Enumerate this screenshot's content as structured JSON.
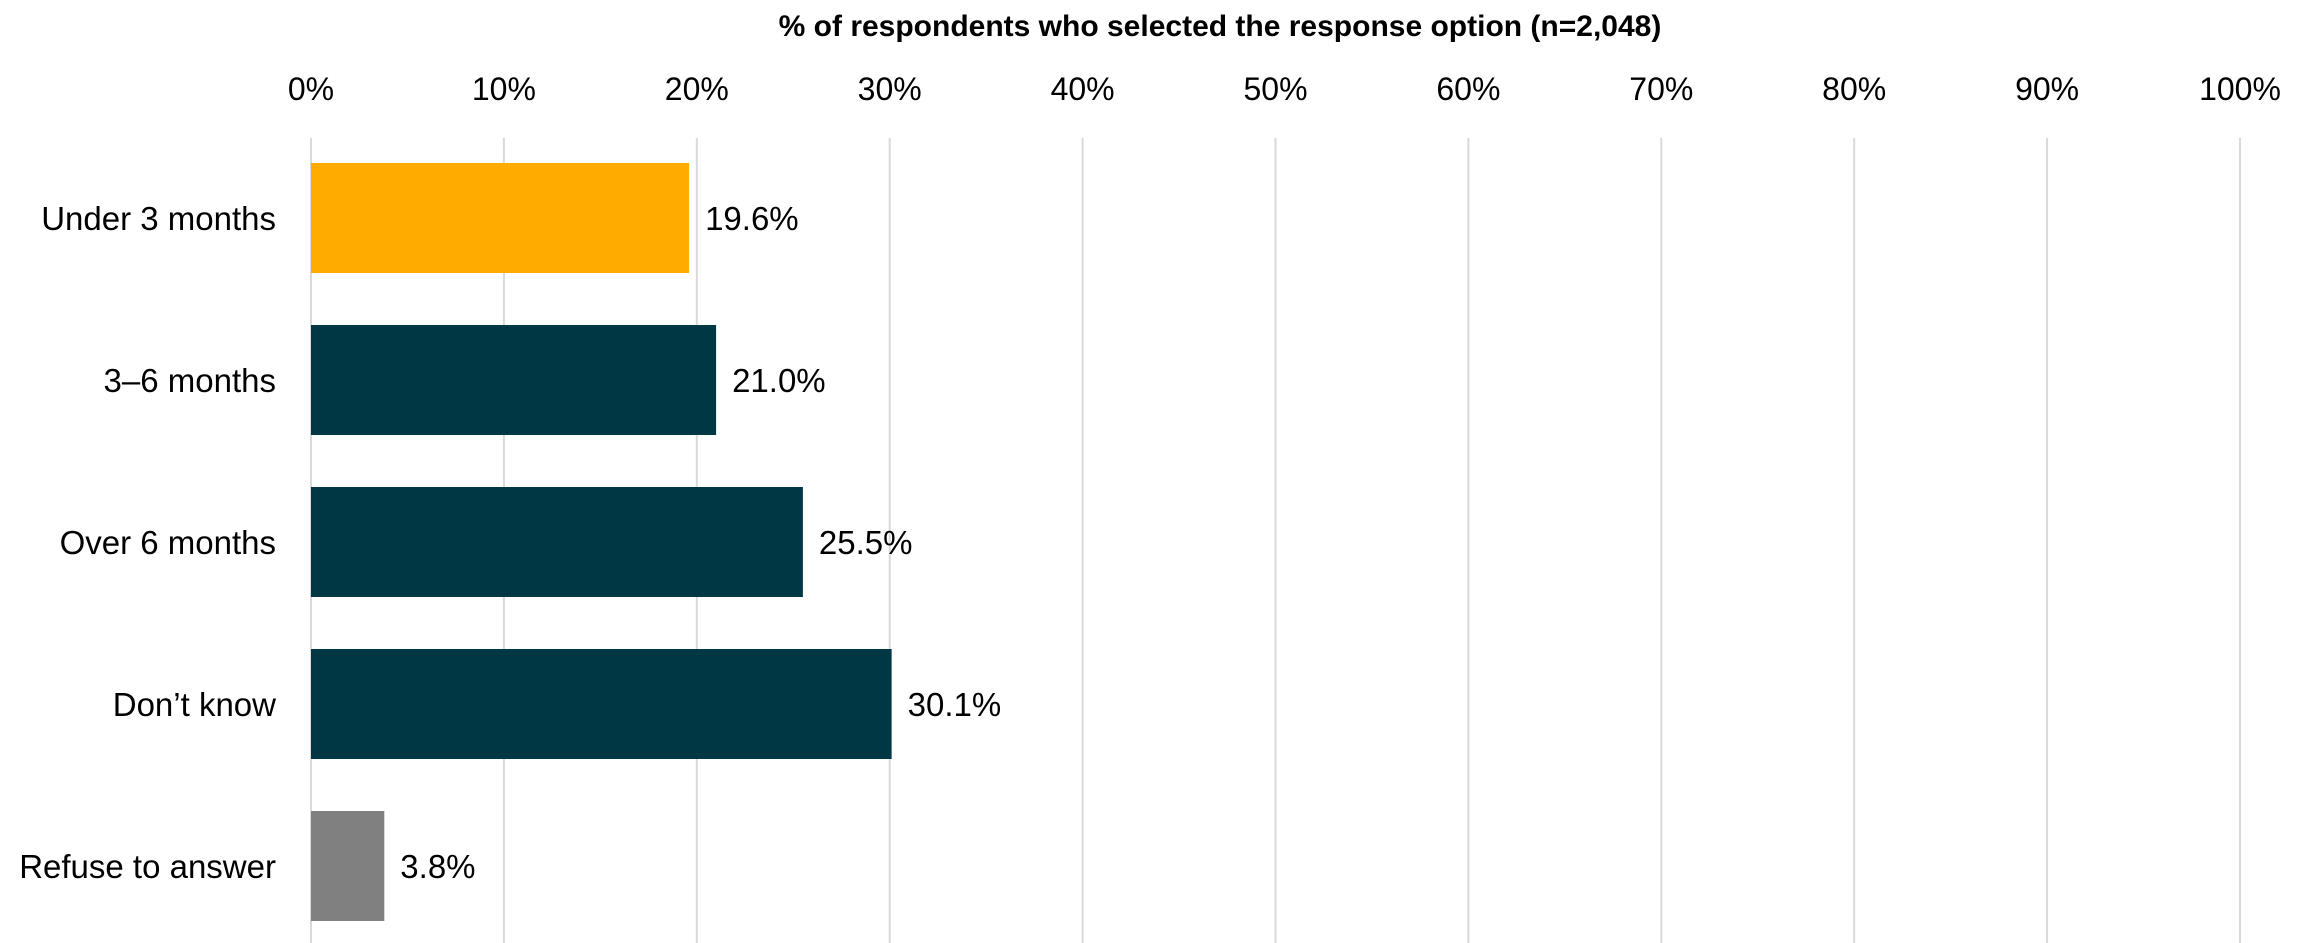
{
  "chart_data": {
    "type": "bar",
    "orientation": "horizontal",
    "title": "",
    "xlabel": "% of respondents who selected the response option (n=2,048)",
    "ylabel": "",
    "xlim": [
      0,
      100
    ],
    "x_axis_position": "top",
    "x_ticks": [
      0,
      10,
      20,
      30,
      40,
      50,
      60,
      70,
      80,
      90,
      100
    ],
    "x_tick_labels": [
      "0%",
      "10%",
      "20%",
      "30%",
      "40%",
      "50%",
      "60%",
      "70%",
      "80%",
      "90%",
      "100%"
    ],
    "grid": true,
    "legend": "none",
    "categories": [
      "Under 3 months",
      "3–6 months",
      "Over 6 months",
      "Don’t know",
      "Refuse to answer"
    ],
    "values": [
      19.6,
      21.0,
      25.5,
      30.1,
      3.8
    ],
    "data_labels": [
      "19.6%",
      "21.0%",
      "25.5%",
      "30.1%",
      "3.8%"
    ],
    "bar_colors": [
      "#FFAB00",
      "#003745",
      "#003745",
      "#003745",
      "#808080"
    ]
  }
}
